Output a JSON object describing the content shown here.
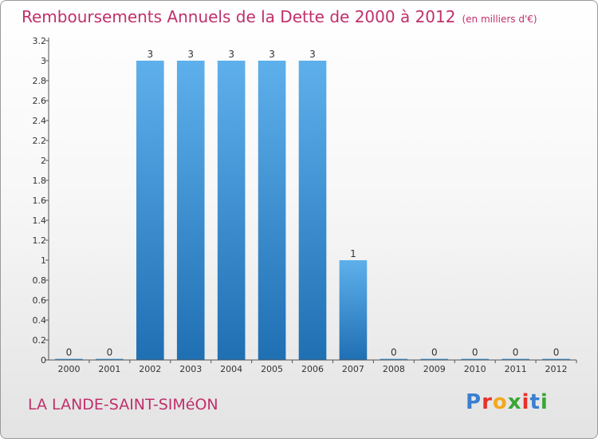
{
  "header": {
    "title": "Remboursements Annuels de la Dette de 2000 à 2012",
    "unit": "(en milliers d'€)"
  },
  "footer": {
    "commune": "LA LANDE-SAINT-SIMéON",
    "logo_letters": [
      "P",
      "r",
      "o",
      "x",
      "i",
      "t",
      "i"
    ],
    "logo_colors": [
      "#3a7fd0",
      "#e8312a",
      "#f4a81d",
      "#3aa635",
      "#e8312a",
      "#3a7fd0",
      "#3aa635"
    ]
  },
  "chart_data": {
    "type": "bar",
    "title": "Remboursements Annuels de la Dette de 2000 à 2012",
    "xlabel": "",
    "ylabel": "",
    "categories": [
      "2000",
      "2001",
      "2002",
      "2003",
      "2004",
      "2005",
      "2006",
      "2007",
      "2008",
      "2009",
      "2010",
      "2011",
      "2012"
    ],
    "values": [
      0,
      0,
      3,
      3,
      3,
      3,
      3,
      1,
      0,
      0,
      0,
      0,
      0
    ],
    "value_labels": [
      "0",
      "0",
      "3",
      "3",
      "3",
      "3",
      "3",
      "1",
      "0",
      "0",
      "0",
      "0",
      "0"
    ],
    "yticks": [
      {
        "v": 0,
        "label": "0"
      },
      {
        "v": 0.2,
        "label": "0.2"
      },
      {
        "v": 0.4,
        "label": "0.4"
      },
      {
        "v": 0.6,
        "label": "0.6"
      },
      {
        "v": 0.8,
        "label": "0.8"
      },
      {
        "v": 1,
        "label": "1"
      },
      {
        "v": 1.2,
        "label": "1.2"
      },
      {
        "v": 1.4,
        "label": "1.4"
      },
      {
        "v": 1.6,
        "label": "1.6"
      },
      {
        "v": 1.8,
        "label": "1.8"
      },
      {
        "v": 2,
        "label": "2"
      },
      {
        "v": 2.2,
        "label": "2.2"
      },
      {
        "v": 2.4,
        "label": "2.4"
      },
      {
        "v": 2.6,
        "label": "2.6"
      },
      {
        "v": 2.8,
        "label": "2.8"
      },
      {
        "v": 3,
        "label": "3"
      },
      {
        "v": 3.2,
        "label": "3.2"
      }
    ],
    "ylim": [
      0,
      3.2
    ],
    "grid": false,
    "bar_color": "#3d8fd6"
  }
}
